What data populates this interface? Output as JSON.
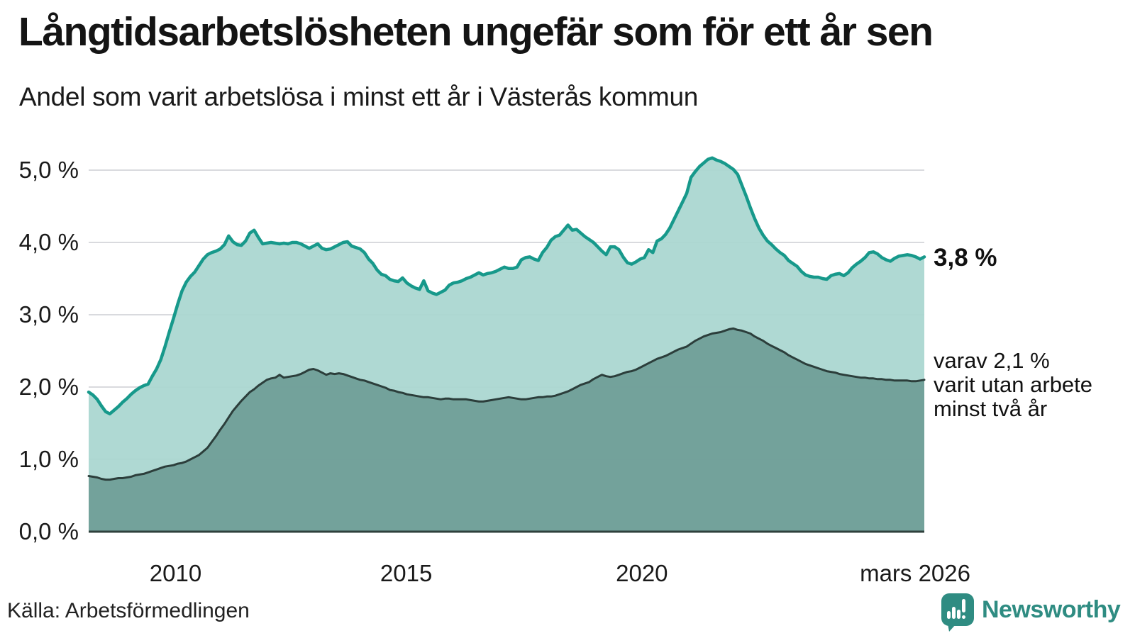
{
  "header": {
    "title": "Långtidsarbetslösheten ungefär som för ett år sen",
    "subtitle": "Andel som varit arbetslösa i minst ett år i Västerås kommun"
  },
  "chart_data": {
    "type": "area",
    "title": "Långtidsarbetslösheten ungefär som för ett år sen",
    "subtitle": "Andel som varit arbetslösa i minst ett år i Västerås kommun",
    "ylabel": "",
    "xlabel": "",
    "ylim": [
      0,
      5.4
    ],
    "grid": true,
    "legend_position": "right-annotations",
    "colors": {
      "grid": "#d9dade",
      "baseline": "#2f403c",
      "text": "#1a1a1a"
    },
    "y_ticks": [
      {
        "value": 5,
        "label": "5,0 %"
      },
      {
        "value": 4,
        "label": "4,0 %"
      },
      {
        "value": 3,
        "label": "3,0 %"
      },
      {
        "value": 2,
        "label": "2,0 %"
      },
      {
        "value": 1,
        "label": "1,0 %"
      },
      {
        "value": 0,
        "label": "0,0 %"
      }
    ],
    "x_ticks": [
      {
        "label": "2010",
        "pos": 0.104
      },
      {
        "label": "2015",
        "pos": 0.38
      },
      {
        "label": "2020",
        "pos": 0.662
      },
      {
        "label": "mars 2026",
        "pos": 0.989
      }
    ],
    "series": [
      {
        "name": "andel arbetslösa minst ett år",
        "color": "#17998b",
        "fill": "#a9d6d0",
        "latest_label": "3,8 %",
        "values": [
          1.93,
          1.89,
          1.83,
          1.74,
          1.66,
          1.63,
          1.68,
          1.73,
          1.79,
          1.84,
          1.9,
          1.95,
          1.99,
          2.02,
          2.04,
          2.15,
          2.25,
          2.38,
          2.56,
          2.76,
          2.95,
          3.15,
          3.33,
          3.45,
          3.53,
          3.59,
          3.68,
          3.77,
          3.83,
          3.86,
          3.88,
          3.91,
          3.97,
          4.09,
          4.01,
          3.97,
          3.96,
          4.02,
          4.13,
          4.17,
          4.07,
          3.98,
          3.99,
          4.0,
          3.99,
          3.98,
          3.99,
          3.98,
          4.0,
          4.0,
          3.98,
          3.95,
          3.92,
          3.95,
          3.98,
          3.92,
          3.9,
          3.91,
          3.94,
          3.97,
          4.0,
          4.01,
          3.95,
          3.93,
          3.91,
          3.86,
          3.77,
          3.71,
          3.62,
          3.56,
          3.54,
          3.49,
          3.47,
          3.46,
          3.51,
          3.44,
          3.4,
          3.37,
          3.35,
          3.47,
          3.33,
          3.3,
          3.28,
          3.31,
          3.34,
          3.41,
          3.44,
          3.45,
          3.47,
          3.5,
          3.52,
          3.55,
          3.58,
          3.55,
          3.57,
          3.58,
          3.6,
          3.63,
          3.66,
          3.64,
          3.64,
          3.66,
          3.76,
          3.79,
          3.8,
          3.77,
          3.75,
          3.86,
          3.93,
          4.03,
          4.08,
          4.1,
          4.17,
          4.24,
          4.17,
          4.18,
          4.13,
          4.08,
          4.04,
          4.0,
          3.94,
          3.88,
          3.83,
          3.94,
          3.94,
          3.9,
          3.8,
          3.72,
          3.7,
          3.73,
          3.77,
          3.79,
          3.9,
          3.86,
          4.02,
          4.05,
          4.11,
          4.2,
          4.32,
          4.44,
          4.56,
          4.68,
          4.9,
          4.98,
          5.05,
          5.1,
          5.15,
          5.17,
          5.14,
          5.12,
          5.09,
          5.05,
          5.01,
          4.94,
          4.79,
          4.64,
          4.48,
          4.33,
          4.2,
          4.1,
          4.02,
          3.97,
          3.91,
          3.86,
          3.82,
          3.75,
          3.71,
          3.67,
          3.6,
          3.55,
          3.53,
          3.52,
          3.52,
          3.5,
          3.49,
          3.54,
          3.56,
          3.57,
          3.54,
          3.58,
          3.65,
          3.7,
          3.74,
          3.79,
          3.86,
          3.87,
          3.84,
          3.79,
          3.76,
          3.74,
          3.78,
          3.81,
          3.82,
          3.83,
          3.82,
          3.8,
          3.77,
          3.8
        ]
      },
      {
        "name": "varav utan arbete minst två år",
        "color": "#2c3e3b",
        "fill": "#6f9d97",
        "latest_label": "varav 2,1 %",
        "values": [
          0.77,
          0.76,
          0.75,
          0.73,
          0.72,
          0.72,
          0.73,
          0.74,
          0.74,
          0.75,
          0.76,
          0.78,
          0.79,
          0.8,
          0.82,
          0.84,
          0.86,
          0.88,
          0.9,
          0.91,
          0.92,
          0.94,
          0.95,
          0.97,
          1.0,
          1.03,
          1.06,
          1.11,
          1.16,
          1.24,
          1.32,
          1.41,
          1.49,
          1.58,
          1.67,
          1.74,
          1.81,
          1.87,
          1.93,
          1.97,
          2.02,
          2.06,
          2.1,
          2.12,
          2.13,
          2.17,
          2.13,
          2.14,
          2.15,
          2.16,
          2.18,
          2.21,
          2.24,
          2.25,
          2.23,
          2.2,
          2.17,
          2.19,
          2.18,
          2.19,
          2.18,
          2.16,
          2.14,
          2.12,
          2.1,
          2.09,
          2.07,
          2.05,
          2.03,
          2.01,
          1.99,
          1.96,
          1.95,
          1.93,
          1.92,
          1.9,
          1.89,
          1.88,
          1.87,
          1.86,
          1.86,
          1.85,
          1.84,
          1.83,
          1.84,
          1.84,
          1.83,
          1.83,
          1.83,
          1.83,
          1.82,
          1.81,
          1.8,
          1.8,
          1.81,
          1.82,
          1.83,
          1.84,
          1.85,
          1.86,
          1.85,
          1.84,
          1.83,
          1.83,
          1.84,
          1.85,
          1.86,
          1.86,
          1.87,
          1.87,
          1.88,
          1.9,
          1.92,
          1.94,
          1.97,
          2.0,
          2.03,
          2.05,
          2.07,
          2.11,
          2.14,
          2.17,
          2.15,
          2.14,
          2.15,
          2.17,
          2.19,
          2.21,
          2.22,
          2.24,
          2.27,
          2.3,
          2.33,
          2.36,
          2.39,
          2.41,
          2.43,
          2.46,
          2.49,
          2.52,
          2.54,
          2.56,
          2.6,
          2.64,
          2.67,
          2.7,
          2.72,
          2.74,
          2.75,
          2.76,
          2.78,
          2.8,
          2.81,
          2.79,
          2.78,
          2.76,
          2.74,
          2.7,
          2.67,
          2.64,
          2.6,
          2.57,
          2.54,
          2.51,
          2.48,
          2.44,
          2.41,
          2.38,
          2.35,
          2.32,
          2.3,
          2.28,
          2.26,
          2.24,
          2.22,
          2.21,
          2.2,
          2.18,
          2.17,
          2.16,
          2.15,
          2.14,
          2.13,
          2.13,
          2.12,
          2.12,
          2.11,
          2.11,
          2.1,
          2.1,
          2.09,
          2.09,
          2.09,
          2.09,
          2.08,
          2.08,
          2.09,
          2.1
        ]
      }
    ],
    "annotations": {
      "latest_total": "3,8 %",
      "latest_two_year": "varav 2,1 %\nvarit utan arbete\nminst två år"
    }
  },
  "footer": {
    "source": "Källa: Arbetsförmedlingen",
    "logo_text": "Newsworthy"
  },
  "brand": {
    "logo_color": "#2f8c82"
  }
}
